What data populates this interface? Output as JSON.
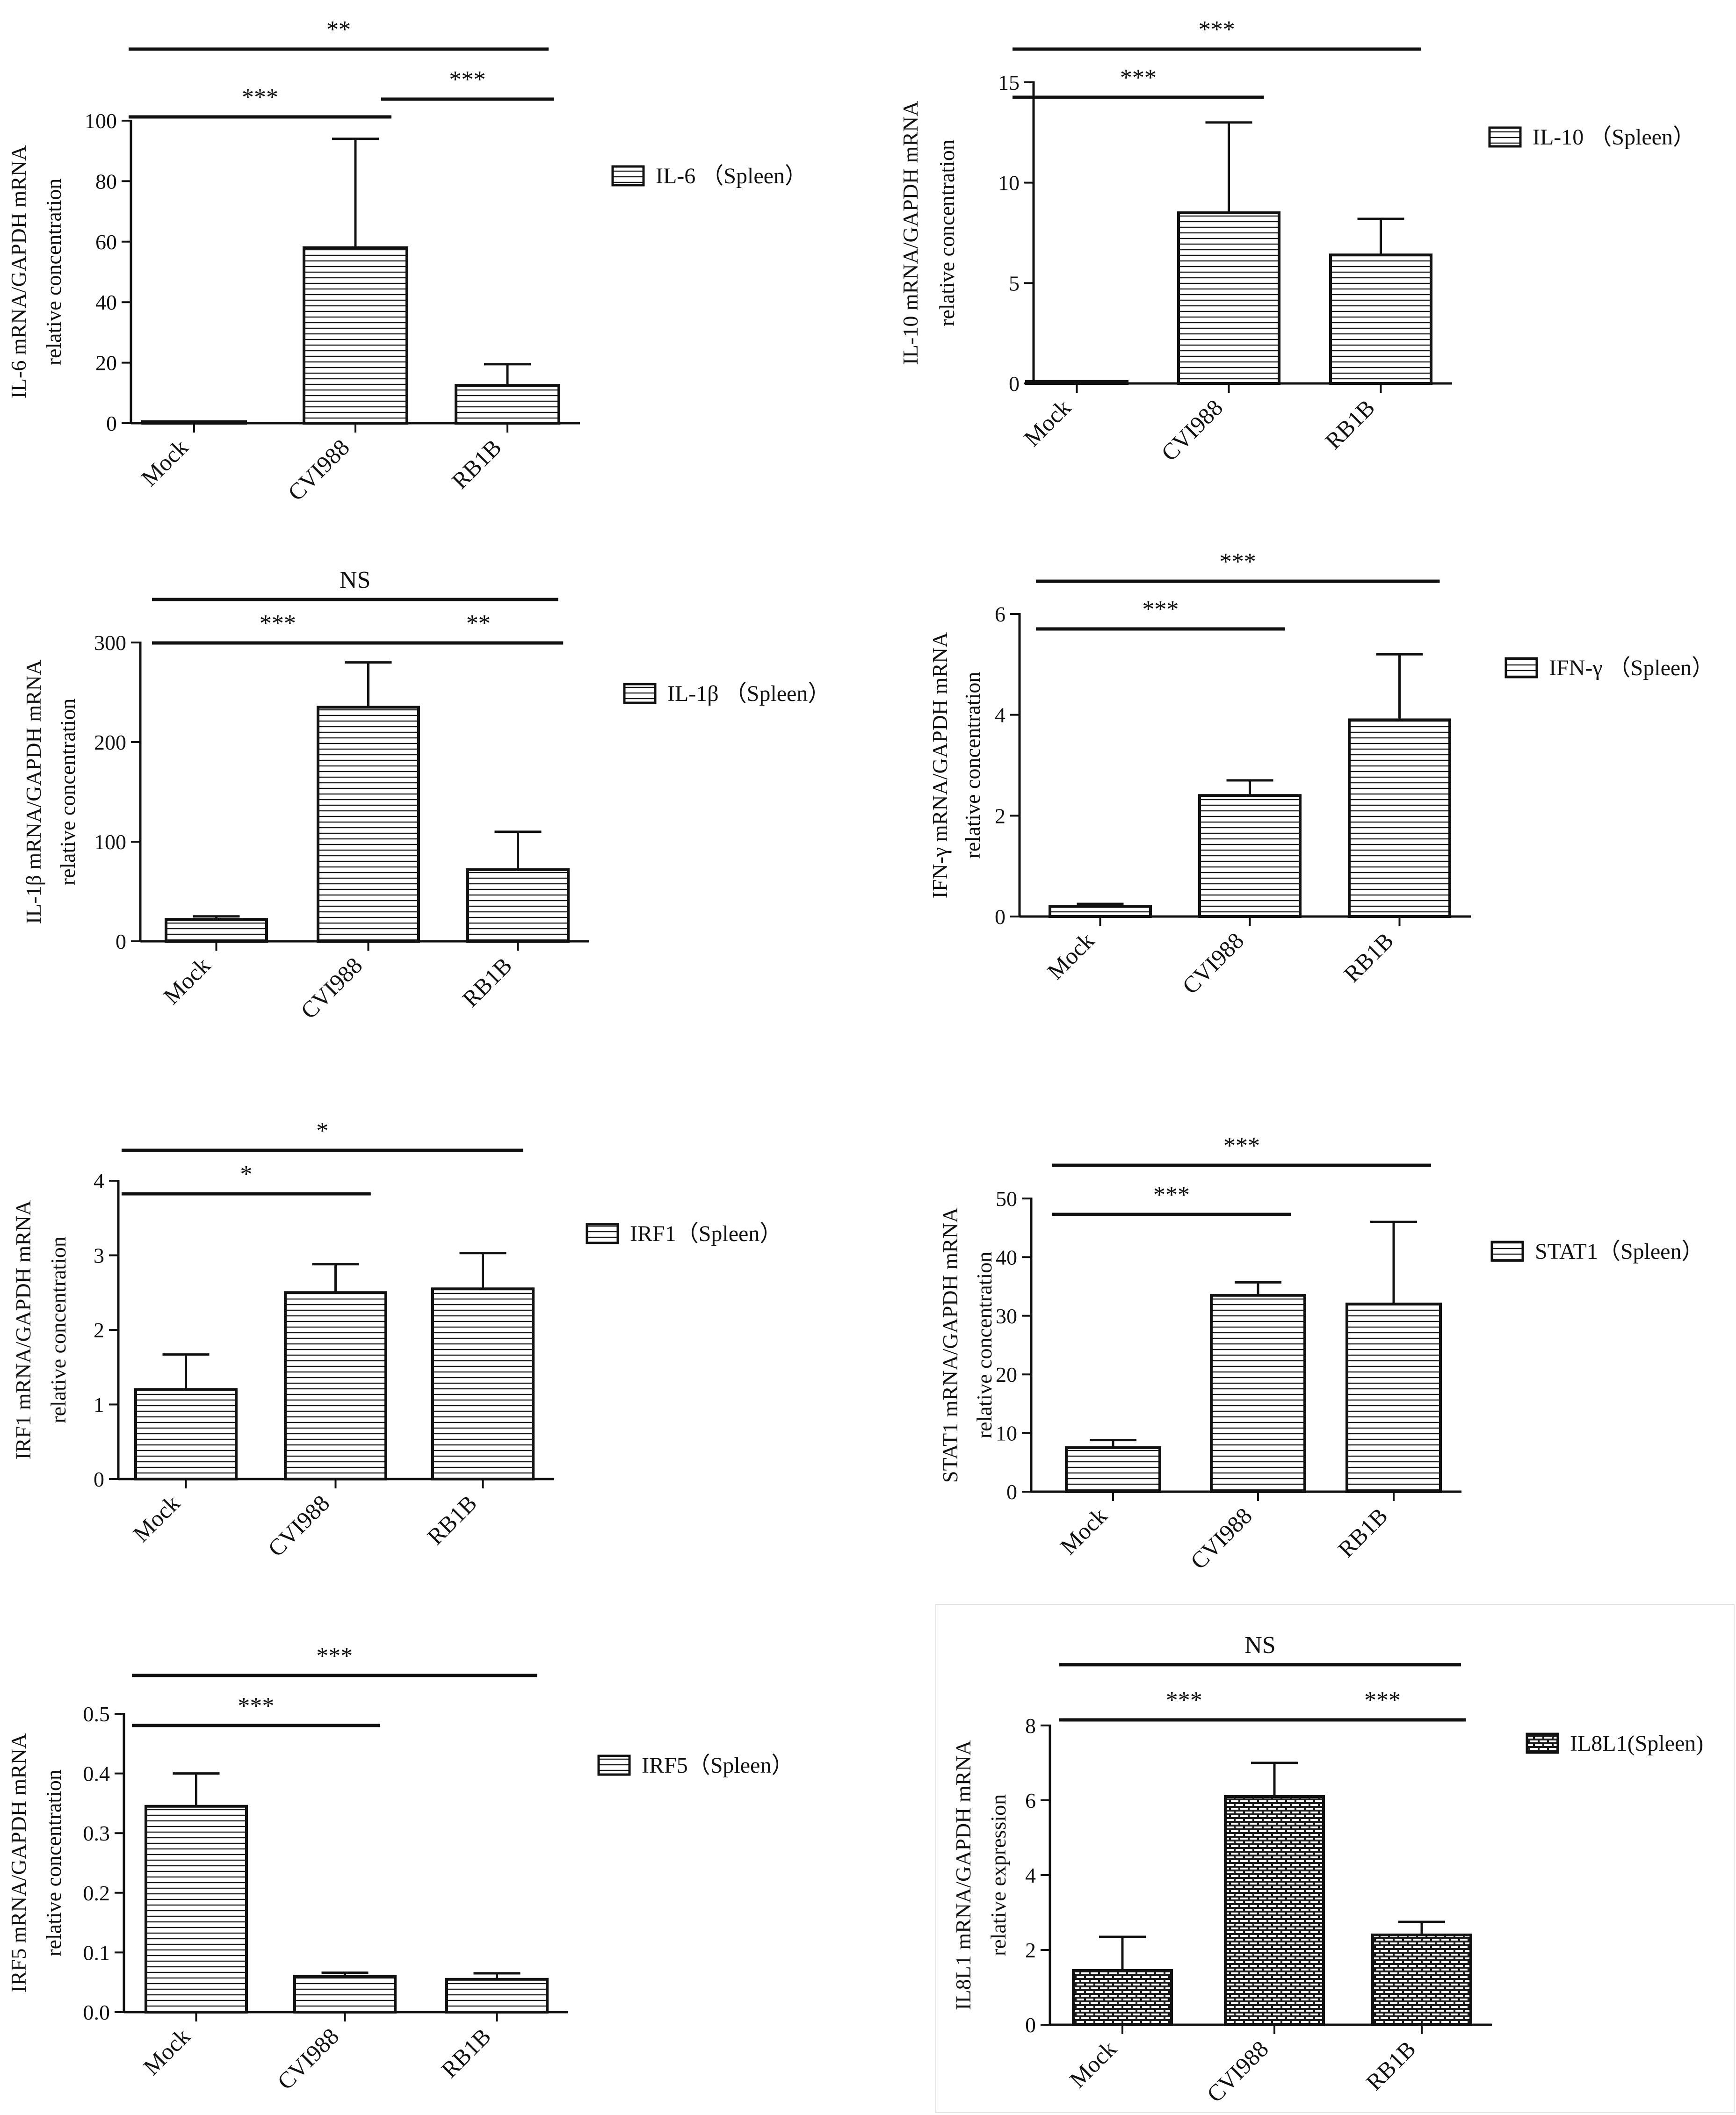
{
  "figure": {
    "colors": {
      "ink": "#111111",
      "bar_fill": "#ffffff",
      "hatch": "#1a1a1a",
      "panel_border": "#e3e3e3"
    },
    "hatch_styles": [
      "horizontal-lines",
      "brick"
    ]
  },
  "chart_data": [
    {
      "id": "il6",
      "type": "bar",
      "hatch": "horizontal-lines",
      "categories": [
        "Mock",
        "CVI988",
        "RB1B"
      ],
      "values": [
        0.5,
        58,
        12.5
      ],
      "errors": [
        0,
        36,
        7
      ],
      "yticks": [
        0,
        20,
        40,
        60,
        80,
        100
      ],
      "ylim": [
        0,
        100
      ],
      "ylabel": [
        "IL-6 mRNA/GAPDH mRNA",
        "relative concentration"
      ],
      "legend": "IL-6 （Spleen）",
      "significance": [
        {
          "from": 0,
          "to": 1,
          "label": "***"
        },
        {
          "from": 1,
          "to": 2,
          "label": "***"
        },
        {
          "from": 0,
          "to": 2,
          "label": "**"
        }
      ]
    },
    {
      "id": "il10",
      "type": "bar",
      "hatch": "horizontal-lines",
      "categories": [
        "Mock",
        "CVI988",
        "RB1B"
      ],
      "values": [
        0.1,
        8.5,
        6.4
      ],
      "errors": [
        0,
        4.5,
        1.8
      ],
      "yticks": [
        0,
        5,
        10,
        15
      ],
      "ylim": [
        0,
        15
      ],
      "ylabel": [
        "IL-10 mRNA/GAPDH mRNA",
        "relative concentration"
      ],
      "legend": "IL-10 （Spleen）",
      "significance": [
        {
          "from": 0,
          "to": 1,
          "label": "***"
        },
        {
          "from": 0,
          "to": 2,
          "label": "***"
        }
      ]
    },
    {
      "id": "il1b",
      "type": "bar",
      "hatch": "horizontal-lines",
      "categories": [
        "Mock",
        "CVI988",
        "RB1B"
      ],
      "values": [
        22,
        235,
        72
      ],
      "errors": [
        3,
        45,
        38
      ],
      "yticks": [
        0,
        100,
        200,
        300
      ],
      "ylim": [
        0,
        300
      ],
      "ylabel": [
        "IL-1β mRNA/GAPDH mRNA",
        "relative concentration"
      ],
      "legend": "IL-1β （Spleen）",
      "significance": [
        {
          "from": 0,
          "to": 1,
          "label": "***"
        },
        {
          "from": 1,
          "to": 2,
          "label": "**"
        },
        {
          "from": 0,
          "to": 2,
          "label": "NS"
        }
      ]
    },
    {
      "id": "ifng",
      "type": "bar",
      "hatch": "horizontal-lines",
      "categories": [
        "Mock",
        "CVI988",
        "RB1B"
      ],
      "values": [
        0.2,
        2.4,
        3.9
      ],
      "errors": [
        0.05,
        0.3,
        1.3
      ],
      "yticks": [
        0,
        2,
        4,
        6
      ],
      "ylim": [
        0,
        6
      ],
      "ylabel": [
        "IFN-γ mRNA/GAPDH mRNA",
        "relative concentration"
      ],
      "legend": "IFN-γ （Spleen）",
      "significance": [
        {
          "from": 0,
          "to": 1,
          "label": "***"
        },
        {
          "from": 0,
          "to": 2,
          "label": "***"
        }
      ]
    },
    {
      "id": "irf1",
      "type": "bar",
      "hatch": "horizontal-lines",
      "categories": [
        "Mock",
        "CVI988",
        "RB1B"
      ],
      "values": [
        1.2,
        2.5,
        2.55
      ],
      "errors": [
        0.47,
        0.38,
        0.48
      ],
      "yticks": [
        0,
        1,
        2,
        3,
        4
      ],
      "ylim": [
        0,
        4
      ],
      "ylabel": [
        "IRF1 mRNA/GAPDH mRNA",
        "relative concentration"
      ],
      "legend": "IRF1（Spleen）",
      "significance": [
        {
          "from": 0,
          "to": 1,
          "label": "*"
        },
        {
          "from": 0,
          "to": 2,
          "label": "*"
        }
      ]
    },
    {
      "id": "stat1",
      "type": "bar",
      "hatch": "horizontal-lines",
      "categories": [
        "Mock",
        "CVI988",
        "RB1B"
      ],
      "values": [
        7.5,
        33.5,
        32
      ],
      "errors": [
        1.3,
        2.2,
        14
      ],
      "yticks": [
        0,
        10,
        20,
        30,
        40,
        50
      ],
      "ylim": [
        0,
        50
      ],
      "ylabel": [
        "STAT1 mRNA/GAPDH mRNA",
        "relative concentration"
      ],
      "legend": "STAT1（Spleen）",
      "significance": [
        {
          "from": 0,
          "to": 1,
          "label": "***"
        },
        {
          "from": 0,
          "to": 2,
          "label": "***"
        }
      ]
    },
    {
      "id": "irf5",
      "type": "bar",
      "hatch": "horizontal-lines",
      "categories": [
        "Mock",
        "CVI988",
        "RB1B"
      ],
      "values": [
        0.345,
        0.06,
        0.055
      ],
      "errors": [
        0.055,
        0.006,
        0.01
      ],
      "yticks": [
        0.0,
        0.1,
        0.2,
        0.3,
        0.4,
        0.5
      ],
      "ytick_labels": [
        "0.0",
        "0.1",
        "0.2",
        "0.3",
        "0.4",
        "0.5"
      ],
      "ylim": [
        0,
        0.5
      ],
      "ylabel": [
        "IRF5 mRNA/GAPDH mRNA",
        "relative concentration"
      ],
      "legend": "IRF5（Spleen）",
      "significance": [
        {
          "from": 0,
          "to": 1,
          "label": "***"
        },
        {
          "from": 0,
          "to": 2,
          "label": "***"
        }
      ]
    },
    {
      "id": "il8l1",
      "type": "bar",
      "hatch": "brick",
      "categories": [
        "Mock",
        "CVI988",
        "RB1B"
      ],
      "values": [
        1.45,
        6.1,
        2.4
      ],
      "errors": [
        0.9,
        0.9,
        0.35
      ],
      "yticks": [
        0,
        2,
        4,
        6,
        8
      ],
      "ylim": [
        0,
        8
      ],
      "ylabel": [
        "IL8L1 mRNA/GAPDH mRNA",
        "relative expression"
      ],
      "legend": "IL8L1(Spleen)",
      "significance": [
        {
          "from": 0,
          "to": 1,
          "label": "***"
        },
        {
          "from": 1,
          "to": 2,
          "label": "***"
        },
        {
          "from": 0,
          "to": 2,
          "label": "NS"
        }
      ]
    }
  ]
}
